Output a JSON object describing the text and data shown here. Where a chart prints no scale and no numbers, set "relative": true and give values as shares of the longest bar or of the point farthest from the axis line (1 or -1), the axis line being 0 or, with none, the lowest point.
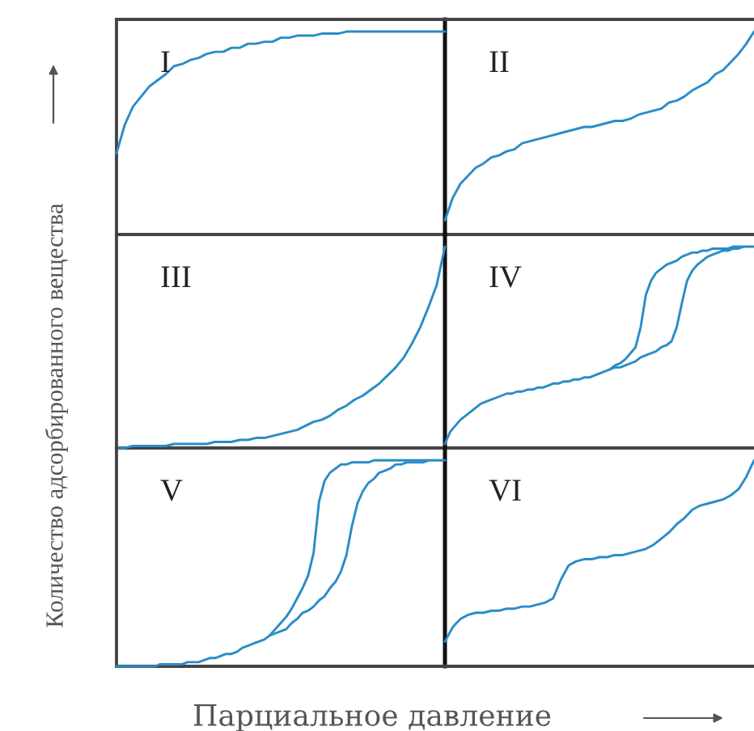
{
  "chart_data": [
    {
      "type": "line",
      "title": "I",
      "relative": true,
      "categories": [
        null,
        null,
        null,
        null,
        null,
        null,
        null,
        null,
        null,
        null,
        null,
        null,
        null,
        null,
        null,
        null,
        null,
        null,
        null,
        null,
        null,
        null,
        null,
        null,
        null,
        null,
        null,
        null,
        null,
        null,
        null,
        null,
        null,
        null,
        null,
        null,
        null,
        null,
        null,
        null,
        null
      ],
      "series": [
        {
          "color": "#2a8cc8",
          "values": [
            0.4,
            0.54,
            0.63,
            0.68,
            0.73,
            0.76,
            0.79,
            0.83,
            0.84,
            0.86,
            0.87,
            0.89,
            0.9,
            0.9,
            0.92,
            0.92,
            0.94,
            0.94,
            0.95,
            0.95,
            0.97,
            0.97,
            0.98,
            0.98,
            0.98,
            0.99,
            0.99,
            0.99,
            1.0,
            1.0,
            1.0,
            1.0,
            1.0,
            1.0,
            1.0,
            1.0,
            1.0,
            1.0,
            1.0,
            1.0,
            1.0
          ]
        }
      ]
    },
    {
      "type": "line",
      "title": "II",
      "relative": true,
      "categories": [
        null,
        null,
        null,
        null,
        null,
        null,
        null,
        null,
        null,
        null,
        null,
        null,
        null,
        null,
        null,
        null,
        null,
        null,
        null,
        null,
        null,
        null,
        null,
        null,
        null,
        null,
        null,
        null,
        null,
        null,
        null,
        null,
        null,
        null,
        null,
        null,
        null,
        null,
        null,
        null,
        null
      ],
      "series": [
        {
          "color": "#2a8cc8",
          "values": [
            0.07,
            0.18,
            0.25,
            0.29,
            0.33,
            0.35,
            0.38,
            0.39,
            0.41,
            0.42,
            0.45,
            0.46,
            0.47,
            0.48,
            0.49,
            0.5,
            0.51,
            0.52,
            0.53,
            0.53,
            0.54,
            0.55,
            0.56,
            0.56,
            0.57,
            0.59,
            0.6,
            0.61,
            0.62,
            0.65,
            0.66,
            0.68,
            0.71,
            0.73,
            0.75,
            0.79,
            0.81,
            0.85,
            0.89,
            0.94,
            1.0
          ]
        }
      ]
    },
    {
      "type": "line",
      "title": "III",
      "relative": true,
      "ylabel": "Количество адсорбированного вещества",
      "categories": [
        null,
        null,
        null,
        null,
        null,
        null,
        null,
        null,
        null,
        null,
        null,
        null,
        null,
        null,
        null,
        null,
        null,
        null,
        null,
        null,
        null,
        null,
        null,
        null,
        null,
        null,
        null,
        null,
        null,
        null,
        null,
        null,
        null,
        null,
        null,
        null,
        null,
        null,
        null,
        null,
        null
      ],
      "series": [
        {
          "color": "#2a8cc8",
          "values": [
            0.0,
            0.0,
            0.01,
            0.01,
            0.01,
            0.01,
            0.01,
            0.02,
            0.02,
            0.02,
            0.02,
            0.02,
            0.03,
            0.03,
            0.03,
            0.04,
            0.04,
            0.05,
            0.05,
            0.06,
            0.07,
            0.08,
            0.09,
            0.11,
            0.13,
            0.14,
            0.16,
            0.19,
            0.21,
            0.24,
            0.26,
            0.29,
            0.32,
            0.36,
            0.4,
            0.45,
            0.52,
            0.6,
            0.7,
            0.81,
            1.0
          ]
        }
      ]
    },
    {
      "type": "line",
      "title": "IV",
      "relative": true,
      "categories": [
        null,
        null,
        null,
        null,
        null,
        null,
        null,
        null,
        null,
        null,
        null,
        null,
        null,
        null,
        null,
        null,
        null,
        null,
        null,
        null,
        null,
        null,
        null,
        null,
        null,
        null,
        null,
        null,
        null,
        null,
        null,
        null,
        null,
        null,
        null,
        null,
        null,
        null,
        null,
        null,
        null,
        null,
        null,
        null,
        null,
        null,
        null,
        null,
        null,
        null,
        null,
        null,
        null,
        null,
        null,
        null,
        null,
        null,
        null,
        null,
        null
      ],
      "series": [
        {
          "color": "#2a8cc8",
          "values": [
            0.02,
            0.08,
            0.11,
            0.14,
            0.16,
            0.18,
            0.2,
            0.22,
            0.23,
            0.24,
            0.25,
            0.26,
            0.27,
            0.27,
            0.28,
            0.28,
            0.29,
            0.29,
            0.3,
            0.3,
            0.31,
            0.32,
            0.32,
            0.33,
            0.33,
            0.34,
            0.34,
            0.35,
            0.35,
            0.36,
            0.37,
            0.38,
            0.39,
            0.4,
            0.4,
            0.41,
            0.42,
            0.43,
            0.45,
            0.46,
            0.47,
            0.48,
            0.5,
            0.51,
            0.53,
            0.6,
            0.72,
            0.83,
            0.88,
            0.91,
            0.93,
            0.95,
            0.96,
            0.97,
            0.98,
            0.98,
            0.99,
            0.99,
            1.0,
            1.0,
            1.0
          ]
        },
        {
          "color": "#2a8cc8",
          "values": [
            null,
            null,
            null,
            null,
            null,
            null,
            null,
            null,
            null,
            null,
            null,
            null,
            null,
            null,
            null,
            null,
            null,
            null,
            null,
            null,
            null,
            null,
            null,
            null,
            null,
            null,
            null,
            null,
            null,
            null,
            null,
            null,
            0.39,
            0.41,
            0.42,
            0.44,
            0.47,
            0.5,
            0.6,
            0.76,
            0.83,
            0.87,
            0.89,
            0.91,
            0.92,
            0.93,
            0.95,
            0.96,
            0.97,
            0.97,
            0.98,
            0.98,
            0.99,
            0.99,
            0.99,
            0.99,
            1.0,
            1.0,
            1.0,
            null,
            null
          ]
        }
      ]
    },
    {
      "type": "line",
      "title": "V",
      "relative": true,
      "xlabel": "Парциальное давление",
      "categories": [
        null,
        null,
        null,
        null,
        null,
        null,
        null,
        null,
        null,
        null,
        null,
        null,
        null,
        null,
        null,
        null,
        null,
        null,
        null,
        null,
        null,
        null,
        null,
        null,
        null,
        null,
        null,
        null,
        null,
        null,
        null,
        null,
        null,
        null,
        null,
        null,
        null,
        null,
        null,
        null,
        null,
        null,
        null,
        null,
        null,
        null,
        null,
        null,
        null,
        null,
        null,
        null,
        null,
        null,
        null,
        null,
        null,
        null,
        null,
        null,
        null
      ],
      "series": [
        {
          "color": "#2a8cc8",
          "values": [
            0.0,
            0.0,
            0.0,
            0.0,
            0.0,
            0.0,
            0.0,
            0.0,
            0.01,
            0.01,
            0.01,
            0.01,
            0.01,
            0.02,
            0.02,
            0.02,
            0.03,
            0.04,
            0.04,
            0.05,
            0.06,
            0.06,
            0.07,
            0.09,
            0.1,
            0.11,
            0.12,
            0.13,
            0.15,
            0.16,
            0.17,
            0.18,
            0.21,
            0.23,
            0.26,
            0.27,
            0.29,
            0.32,
            0.34,
            0.38,
            0.41,
            0.46,
            0.54,
            0.68,
            0.79,
            0.85,
            0.89,
            0.91,
            0.94,
            0.95,
            0.96,
            0.98,
            0.98,
            0.99,
            0.99,
            0.99,
            0.99,
            1.0,
            1.0,
            1.0,
            1.0
          ]
        },
        {
          "color": "#2a8cc8",
          "values": [
            null,
            null,
            null,
            null,
            null,
            null,
            null,
            null,
            null,
            null,
            null,
            null,
            null,
            null,
            null,
            null,
            null,
            null,
            null,
            null,
            null,
            null,
            null,
            null,
            null,
            null,
            null,
            null,
            0.15,
            0.18,
            0.21,
            0.24,
            0.28,
            0.33,
            0.38,
            0.44,
            0.55,
            0.8,
            0.9,
            0.94,
            0.96,
            0.98,
            0.98,
            0.99,
            0.99,
            0.99,
            0.99,
            1.0,
            1.0,
            1.0,
            1.0,
            1.0,
            1.0,
            1.0,
            1.0,
            1.0,
            1.0,
            1.0,
            null,
            null,
            null
          ]
        }
      ]
    },
    {
      "type": "line",
      "title": "VI",
      "relative": true,
      "categories": [
        null,
        null,
        null,
        null,
        null,
        null,
        null,
        null,
        null,
        null,
        null,
        null,
        null,
        null,
        null,
        null,
        null,
        null,
        null,
        null,
        null,
        null,
        null,
        null,
        null,
        null,
        null,
        null,
        null,
        null,
        null,
        null,
        null,
        null,
        null,
        null,
        null,
        null,
        null,
        null,
        null
      ],
      "series": [
        {
          "color": "#2a8cc8",
          "values": [
            0.12,
            0.19,
            0.23,
            0.25,
            0.26,
            0.26,
            0.27,
            0.27,
            0.28,
            0.28,
            0.29,
            0.29,
            0.3,
            0.31,
            0.33,
            0.42,
            0.49,
            0.51,
            0.52,
            0.52,
            0.53,
            0.53,
            0.54,
            0.54,
            0.55,
            0.56,
            0.57,
            0.59,
            0.62,
            0.65,
            0.69,
            0.72,
            0.76,
            0.78,
            0.79,
            0.8,
            0.81,
            0.83,
            0.86,
            0.92,
            1.0
          ]
        }
      ]
    }
  ]
}
